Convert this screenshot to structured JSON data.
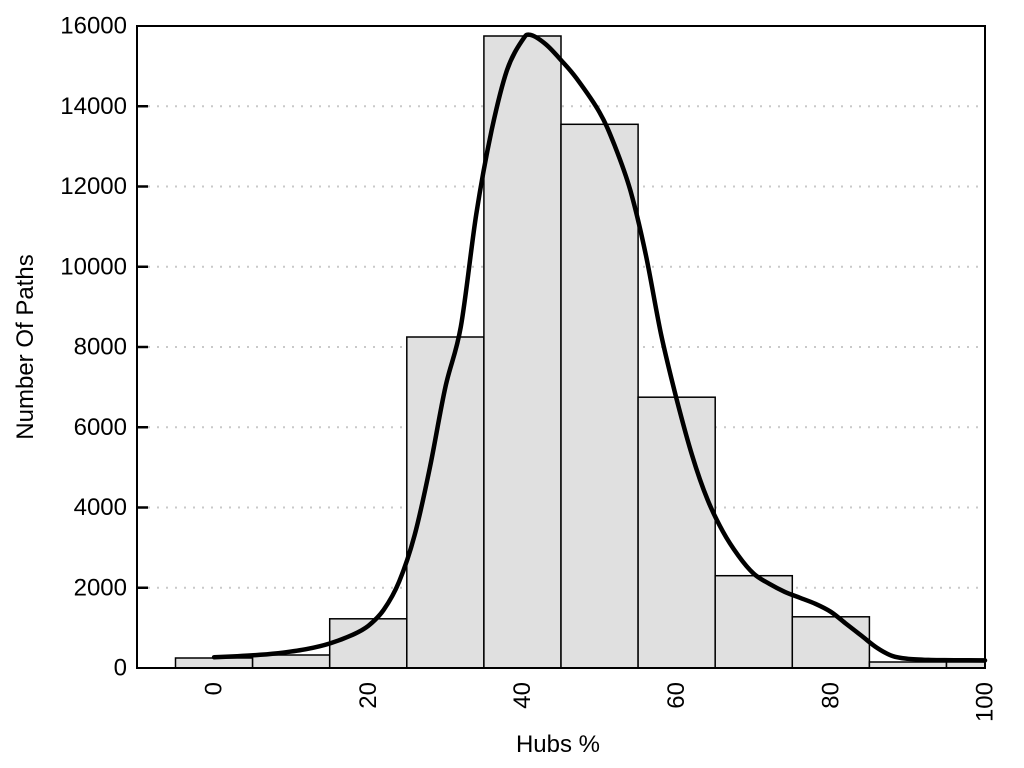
{
  "chart_data": {
    "type": "bar",
    "subtype": "histogram-with-density-curve",
    "title": "",
    "xlabel": "Hubs %",
    "ylabel": "Number Of Paths",
    "xlim": [
      -10,
      100
    ],
    "ylim": [
      0,
      16000
    ],
    "x_ticks": [
      0,
      20,
      40,
      60,
      80,
      100
    ],
    "x_tick_labels": [
      "0",
      "20",
      "40",
      "60",
      "80",
      "100"
    ],
    "x_tick_labels_rotated_degrees": -90,
    "y_ticks": [
      0,
      2000,
      4000,
      6000,
      8000,
      10000,
      12000,
      14000,
      16000
    ],
    "y_tick_labels": [
      "0",
      "2000",
      "4000",
      "6000",
      "8000",
      "10000",
      "12000",
      "14000",
      "16000"
    ],
    "grid": "horizontal dotted lines at y ticks 2000 through 14000",
    "legend": "none",
    "bars": {
      "bin_width": 10,
      "centers": [
        0,
        10,
        20,
        30,
        40,
        50,
        60,
        70,
        80,
        90,
        100
      ],
      "values": [
        250,
        325,
        1225,
        8250,
        15750,
        13550,
        6750,
        2300,
        1275,
        150,
        150
      ],
      "note": "last bin clipped at x=100"
    },
    "density_curve": {
      "points": [
        [
          0,
          270
        ],
        [
          3,
          295
        ],
        [
          6,
          330
        ],
        [
          9,
          385
        ],
        [
          12,
          470
        ],
        [
          15,
          610
        ],
        [
          18,
          830
        ],
        [
          20,
          1050
        ],
        [
          22,
          1450
        ],
        [
          24,
          2150
        ],
        [
          26,
          3300
        ],
        [
          28,
          5000
        ],
        [
          30,
          7000
        ],
        [
          32,
          8500
        ],
        [
          34,
          11300
        ],
        [
          36,
          13400
        ],
        [
          38,
          14900
        ],
        [
          40,
          15650
        ],
        [
          41,
          15780
        ],
        [
          43,
          15550
        ],
        [
          45,
          15150
        ],
        [
          47,
          14700
        ],
        [
          50,
          13850
        ],
        [
          52,
          13000
        ],
        [
          54,
          11900
        ],
        [
          56,
          10300
        ],
        [
          58,
          8300
        ],
        [
          60,
          6700
        ],
        [
          62,
          5300
        ],
        [
          64,
          4200
        ],
        [
          66,
          3400
        ],
        [
          68,
          2800
        ],
        [
          70,
          2350
        ],
        [
          72,
          2100
        ],
        [
          74,
          1900
        ],
        [
          76,
          1750
        ],
        [
          78,
          1600
        ],
        [
          80,
          1400
        ],
        [
          82,
          1100
        ],
        [
          84,
          800
        ],
        [
          86,
          500
        ],
        [
          88,
          300
        ],
        [
          90,
          230
        ],
        [
          93,
          200
        ],
        [
          96,
          195
        ],
        [
          100,
          190
        ]
      ]
    },
    "colors": {
      "background": "#ffffff",
      "bar_fill": "#e0e0e0",
      "bar_stroke": "#000000",
      "curve": "#000000",
      "grid": "#c9c9c9",
      "frame": "#000000",
      "text": "#000000"
    }
  }
}
